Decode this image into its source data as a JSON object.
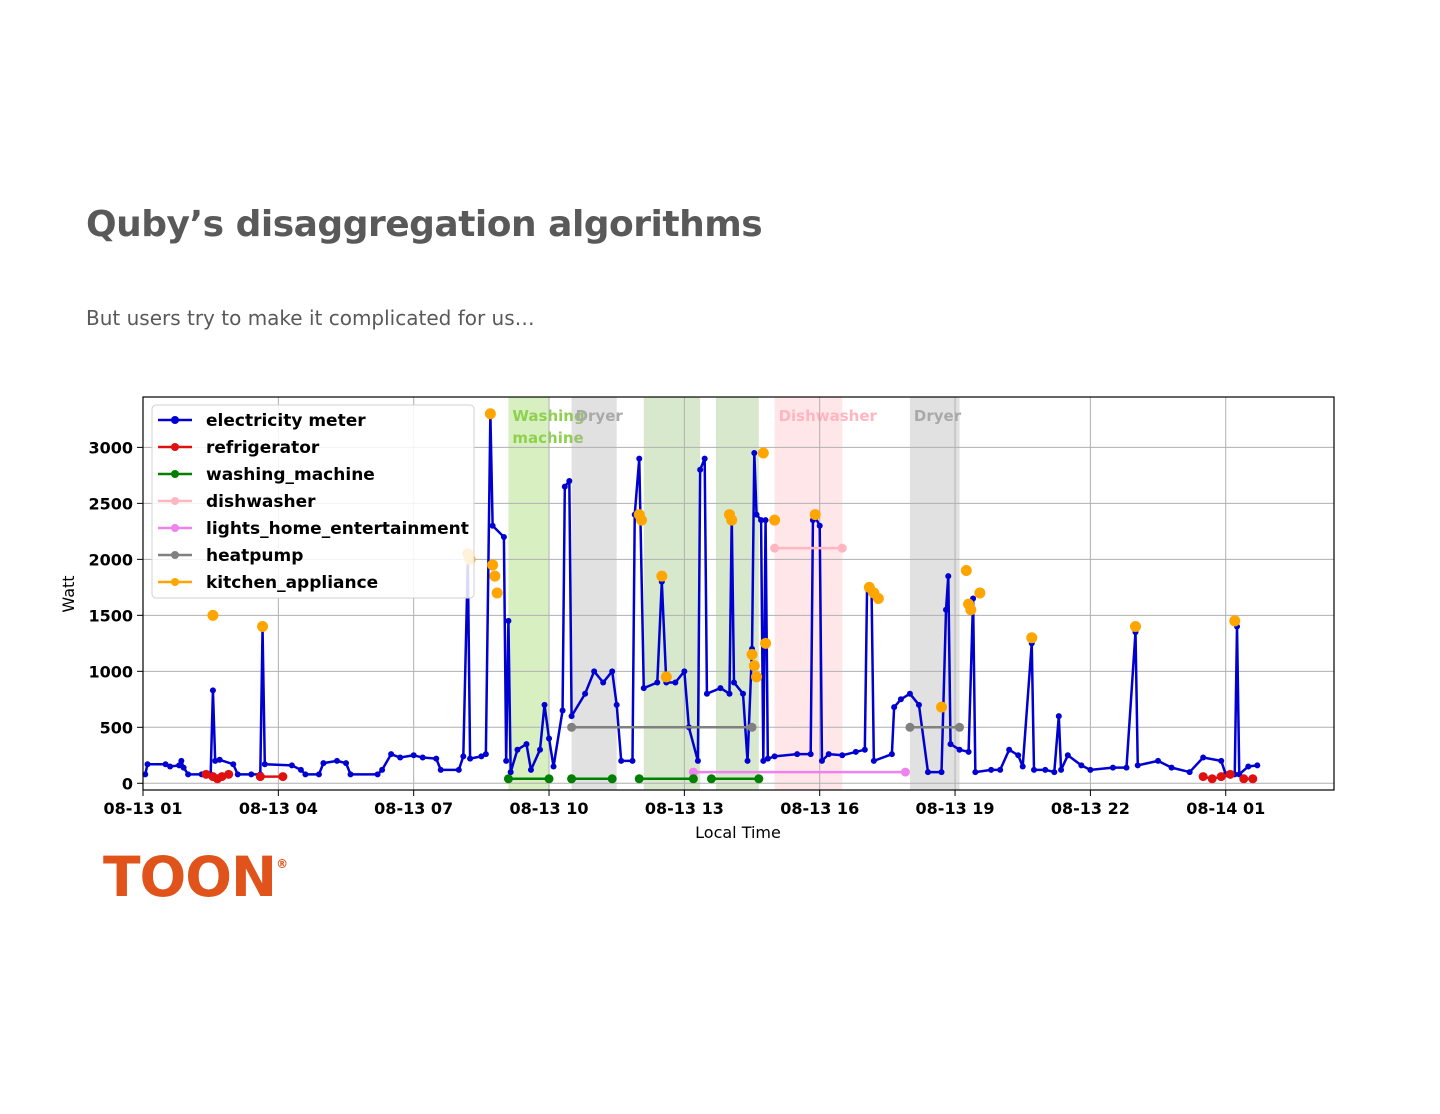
{
  "slide": {
    "title": "Quby’s disaggregation algorithms",
    "subtitle": "But users try to make it complicated for us…",
    "logo_text": "TOON",
    "logo_mark": "®"
  },
  "colors": {
    "electricity_meter": "#0000d0",
    "refrigerator": "#e01010",
    "washing_machine": "#008000",
    "dishwasher": "#ffb6c1",
    "lights_home_entertainment": "#ee82ee",
    "heatpump": "#808080",
    "kitchen_appliance": "#ffa500",
    "logo": "#e0531b"
  },
  "chart_data": {
    "type": "line",
    "xlabel": "Local Time",
    "ylabel": "Watt",
    "x_unit": "hours since 08-13 00:00",
    "xlim": [
      1.0,
      27.4
    ],
    "ylim": [
      -60,
      3450
    ],
    "x_ticks": [
      {
        "x": 1,
        "label": "08-13 01"
      },
      {
        "x": 4,
        "label": "08-13 04"
      },
      {
        "x": 7,
        "label": "08-13 07"
      },
      {
        "x": 10,
        "label": "08-13 10"
      },
      {
        "x": 13,
        "label": "08-13 13"
      },
      {
        "x": 16,
        "label": "08-13 16"
      },
      {
        "x": 19,
        "label": "08-13 19"
      },
      {
        "x": 22,
        "label": "08-13 22"
      },
      {
        "x": 25,
        "label": "08-14 01"
      }
    ],
    "y_ticks": [
      0,
      500,
      1000,
      1500,
      2000,
      2500,
      3000
    ],
    "grid": true,
    "legend_position": "top-left",
    "legend": [
      "electricity meter",
      "refrigerator",
      "washing_machine",
      "dishwasher",
      "lights_home_entertainment",
      "heatpump",
      "kitchen_appliance"
    ],
    "annotations": [
      {
        "label": "Washing\nmachine",
        "x0": 9.1,
        "x1": 10.0,
        "color": "#8fd14f"
      },
      {
        "label": "Dryer",
        "x0": 10.5,
        "x1": 11.5,
        "color": "#a9a9a9"
      },
      {
        "label": "",
        "x0": 12.1,
        "x1": 13.35,
        "color": "#8fbc6f"
      },
      {
        "label": "",
        "x0": 13.7,
        "x1": 14.65,
        "color": "#8fbc6f"
      },
      {
        "label": "Dishwasher",
        "x0": 15.0,
        "x1": 16.5,
        "color": "#ffb6c1"
      },
      {
        "label": "Dryer",
        "x0": 18.0,
        "x1": 19.1,
        "color": "#a9a9a9"
      }
    ],
    "series": [
      {
        "name": "electricity meter",
        "key": "electricity_meter",
        "style": "line",
        "points": [
          [
            1.05,
            80
          ],
          [
            1.1,
            170
          ],
          [
            1.5,
            170
          ],
          [
            1.6,
            150
          ],
          [
            1.8,
            160
          ],
          [
            1.85,
            200
          ],
          [
            1.9,
            140
          ],
          [
            2.0,
            80
          ],
          [
            2.3,
            80
          ],
          [
            2.5,
            80
          ],
          [
            2.55,
            830
          ],
          [
            2.6,
            200
          ],
          [
            2.7,
            210
          ],
          [
            3.0,
            170
          ],
          [
            3.1,
            80
          ],
          [
            3.4,
            80
          ],
          [
            3.6,
            80
          ],
          [
            3.65,
            1380
          ],
          [
            3.7,
            170
          ],
          [
            4.3,
            160
          ],
          [
            4.5,
            120
          ],
          [
            4.6,
            80
          ],
          [
            4.9,
            80
          ],
          [
            5.0,
            180
          ],
          [
            5.3,
            200
          ],
          [
            5.5,
            180
          ],
          [
            5.6,
            80
          ],
          [
            6.2,
            80
          ],
          [
            6.3,
            120
          ],
          [
            6.5,
            260
          ],
          [
            6.7,
            230
          ],
          [
            7.0,
            250
          ],
          [
            7.2,
            230
          ],
          [
            7.5,
            220
          ],
          [
            7.6,
            120
          ],
          [
            8.0,
            120
          ],
          [
            8.1,
            240
          ],
          [
            8.2,
            2000
          ],
          [
            8.25,
            220
          ],
          [
            8.5,
            240
          ],
          [
            8.6,
            260
          ],
          [
            8.7,
            3300
          ],
          [
            8.75,
            2300
          ],
          [
            9.0,
            2200
          ],
          [
            9.05,
            200
          ],
          [
            9.1,
            1450
          ],
          [
            9.15,
            100
          ],
          [
            9.3,
            300
          ],
          [
            9.5,
            350
          ],
          [
            9.6,
            120
          ],
          [
            9.8,
            300
          ],
          [
            9.9,
            700
          ],
          [
            10.0,
            400
          ],
          [
            10.1,
            150
          ],
          [
            10.3,
            650
          ],
          [
            10.35,
            2650
          ],
          [
            10.45,
            2700
          ],
          [
            10.5,
            600
          ],
          [
            10.8,
            800
          ],
          [
            11.0,
            1000
          ],
          [
            11.2,
            900
          ],
          [
            11.4,
            1000
          ],
          [
            11.5,
            700
          ],
          [
            11.6,
            200
          ],
          [
            11.85,
            200
          ],
          [
            11.9,
            2400
          ],
          [
            12.0,
            2900
          ],
          [
            12.1,
            850
          ],
          [
            12.4,
            900
          ],
          [
            12.5,
            1800
          ],
          [
            12.6,
            900
          ],
          [
            12.8,
            900
          ],
          [
            13.0,
            1000
          ],
          [
            13.1,
            500
          ],
          [
            13.3,
            200
          ],
          [
            13.35,
            2800
          ],
          [
            13.45,
            2900
          ],
          [
            13.5,
            800
          ],
          [
            13.8,
            850
          ],
          [
            14.0,
            800
          ],
          [
            14.05,
            2380
          ],
          [
            14.1,
            900
          ],
          [
            14.3,
            800
          ],
          [
            14.4,
            200
          ],
          [
            14.5,
            1200
          ],
          [
            14.55,
            2950
          ],
          [
            14.6,
            2400
          ],
          [
            14.7,
            2350
          ],
          [
            14.75,
            200
          ],
          [
            14.8,
            2350
          ],
          [
            14.85,
            220
          ],
          [
            15.0,
            240
          ],
          [
            15.5,
            260
          ],
          [
            15.8,
            260
          ],
          [
            15.85,
            2350
          ],
          [
            15.9,
            2380
          ],
          [
            16.0,
            2300
          ],
          [
            16.05,
            200
          ],
          [
            16.2,
            260
          ],
          [
            16.5,
            250
          ],
          [
            16.8,
            280
          ],
          [
            17.0,
            300
          ],
          [
            17.05,
            1750
          ],
          [
            17.15,
            1700
          ],
          [
            17.2,
            200
          ],
          [
            17.6,
            260
          ],
          [
            17.65,
            680
          ],
          [
            17.8,
            750
          ],
          [
            18.0,
            800
          ],
          [
            18.2,
            700
          ],
          [
            18.4,
            100
          ],
          [
            18.7,
            100
          ],
          [
            18.8,
            1550
          ],
          [
            18.85,
            1850
          ],
          [
            18.9,
            350
          ],
          [
            19.1,
            300
          ],
          [
            19.3,
            280
          ],
          [
            19.4,
            1650
          ],
          [
            19.45,
            100
          ],
          [
            19.8,
            120
          ],
          [
            20.0,
            120
          ],
          [
            20.2,
            300
          ],
          [
            20.4,
            250
          ],
          [
            20.5,
            150
          ],
          [
            20.7,
            1250
          ],
          [
            20.75,
            120
          ],
          [
            21.0,
            120
          ],
          [
            21.2,
            100
          ],
          [
            21.3,
            600
          ],
          [
            21.35,
            120
          ],
          [
            21.5,
            250
          ],
          [
            21.8,
            160
          ],
          [
            22.0,
            120
          ],
          [
            22.5,
            140
          ],
          [
            22.8,
            140
          ],
          [
            23.0,
            1350
          ],
          [
            23.05,
            160
          ],
          [
            23.5,
            200
          ],
          [
            23.8,
            140
          ],
          [
            24.2,
            100
          ],
          [
            24.5,
            230
          ],
          [
            24.9,
            200
          ],
          [
            25.0,
            80
          ],
          [
            25.2,
            80
          ],
          [
            25.25,
            1400
          ],
          [
            25.3,
            80
          ],
          [
            25.5,
            150
          ],
          [
            25.7,
            160
          ]
        ]
      },
      {
        "name": "refrigerator",
        "key": "refrigerator",
        "style": "segments",
        "segments": [
          [
            [
              2.4,
              80
            ],
            [
              2.55,
              60
            ],
            [
              2.65,
              40
            ],
            [
              2.75,
              60
            ],
            [
              2.9,
              80
            ]
          ],
          [
            [
              3.6,
              60
            ],
            [
              4.1,
              60
            ]
          ],
          [
            [
              24.5,
              60
            ],
            [
              24.7,
              40
            ],
            [
              24.9,
              60
            ],
            [
              25.1,
              80
            ]
          ],
          [
            [
              25.4,
              40
            ],
            [
              25.6,
              40
            ]
          ]
        ]
      },
      {
        "name": "washing_machine",
        "key": "washing_machine",
        "style": "segments",
        "segments": [
          [
            [
              9.1,
              40
            ],
            [
              10.0,
              40
            ]
          ],
          [
            [
              10.5,
              40
            ],
            [
              11.4,
              40
            ]
          ],
          [
            [
              12.0,
              40
            ],
            [
              13.2,
              40
            ]
          ],
          [
            [
              13.6,
              40
            ],
            [
              14.65,
              40
            ]
          ]
        ]
      },
      {
        "name": "dishwasher",
        "key": "dishwasher",
        "style": "segments",
        "segments": [
          [
            [
              15.0,
              2100
            ],
            [
              16.5,
              2100
            ]
          ]
        ]
      },
      {
        "name": "lights_home_entertainment",
        "key": "lights_home_entertainment",
        "style": "segments",
        "segments": [
          [
            [
              13.2,
              100
            ],
            [
              17.9,
              100
            ]
          ]
        ]
      },
      {
        "name": "heatpump",
        "key": "heatpump",
        "style": "segments",
        "segments": [
          [
            [
              10.5,
              500
            ],
            [
              14.5,
              500
            ]
          ],
          [
            [
              18.0,
              500
            ],
            [
              19.1,
              500
            ]
          ]
        ]
      },
      {
        "name": "kitchen_appliance",
        "key": "kitchen_appliance",
        "style": "markers",
        "points": [
          [
            2.55,
            1500
          ],
          [
            3.65,
            1400
          ],
          [
            8.2,
            2050
          ],
          [
            8.25,
            2000
          ],
          [
            8.7,
            3300
          ],
          [
            8.75,
            1950
          ],
          [
            8.8,
            1850
          ],
          [
            8.85,
            1700
          ],
          [
            12.0,
            2400
          ],
          [
            12.05,
            2350
          ],
          [
            12.5,
            1850
          ],
          [
            12.6,
            950
          ],
          [
            14.0,
            2400
          ],
          [
            14.05,
            2350
          ],
          [
            14.5,
            1150
          ],
          [
            14.55,
            1050
          ],
          [
            14.6,
            950
          ],
          [
            14.75,
            2950
          ],
          [
            14.8,
            1250
          ],
          [
            15.0,
            2350
          ],
          [
            15.9,
            2400
          ],
          [
            17.1,
            1750
          ],
          [
            17.2,
            1700
          ],
          [
            17.3,
            1650
          ],
          [
            18.7,
            680
          ],
          [
            19.25,
            1900
          ],
          [
            19.3,
            1600
          ],
          [
            19.35,
            1550
          ],
          [
            19.55,
            1700
          ],
          [
            20.7,
            1300
          ],
          [
            23.0,
            1400
          ],
          [
            25.2,
            1450
          ]
        ]
      }
    ]
  }
}
